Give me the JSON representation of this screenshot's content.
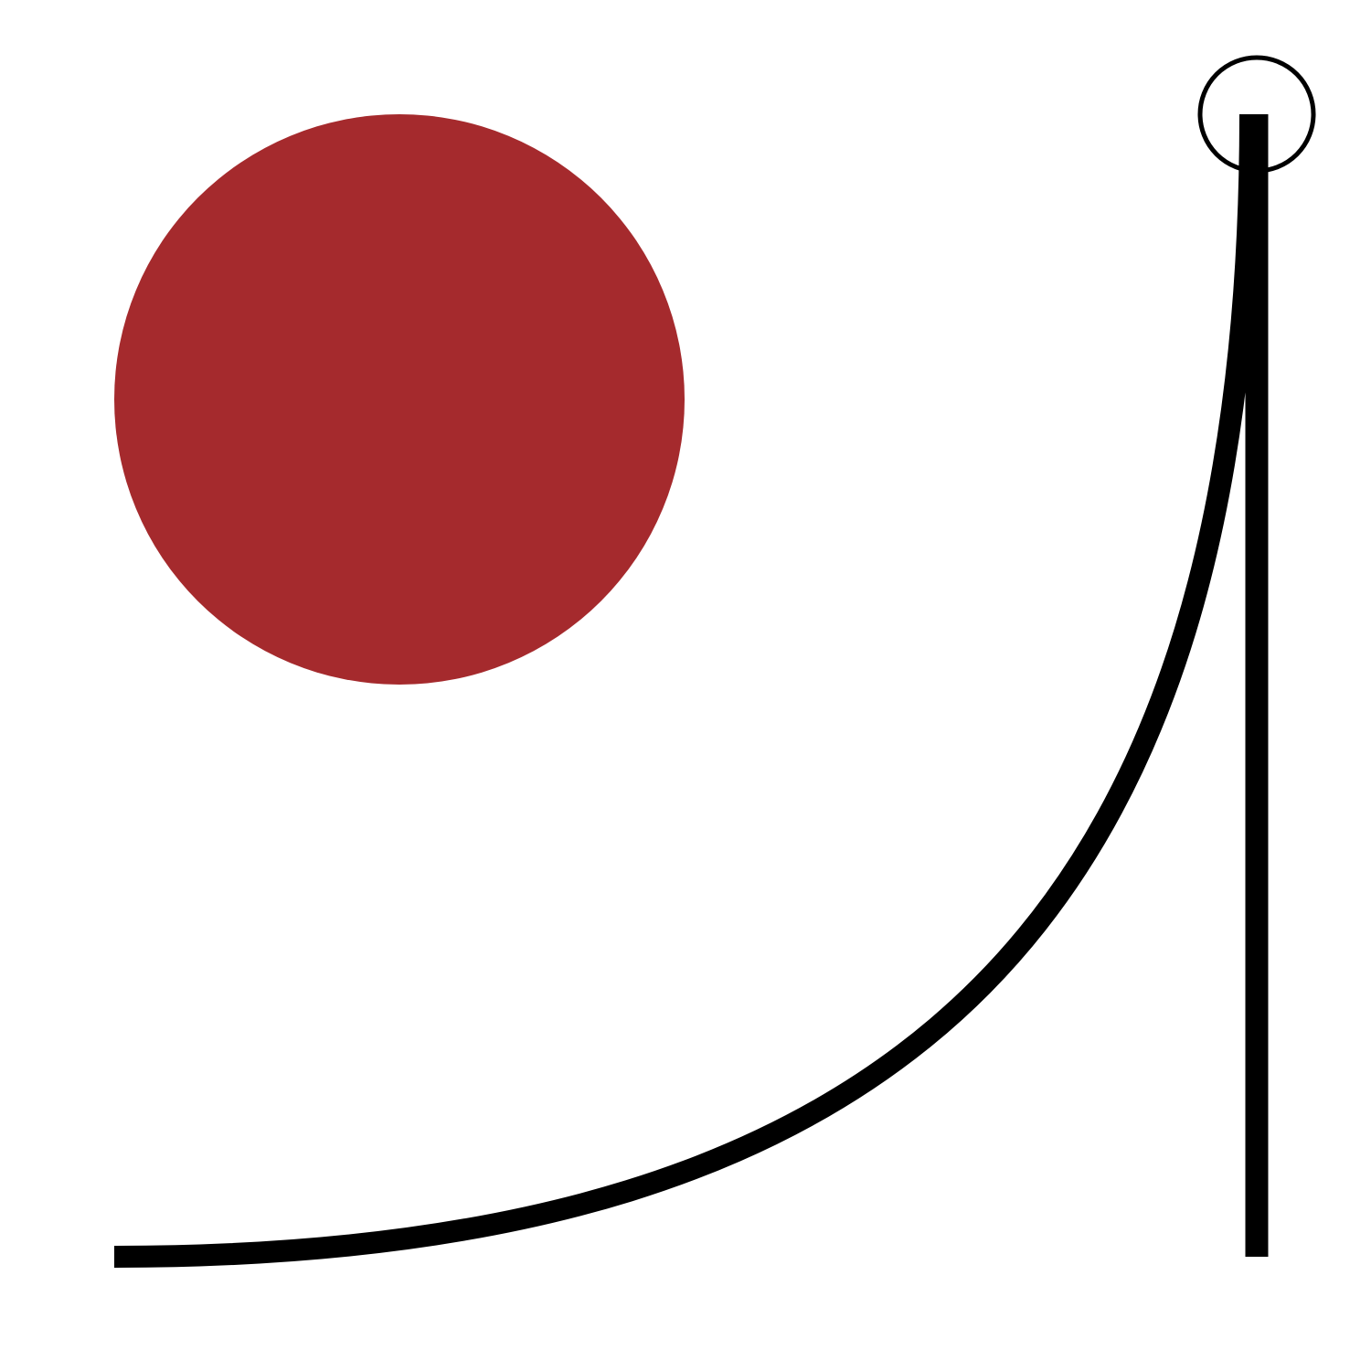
{
  "colors": {
    "background": "#ffffff",
    "filled_circle": "#a52a2d",
    "stroke": "#000000"
  },
  "elements": {
    "filled_circle": {
      "shape": "circle",
      "fill": "red"
    },
    "curve": {
      "shape": "bezier-curve"
    },
    "vertical_line": {
      "shape": "line"
    },
    "handle": {
      "shape": "circle-outline"
    }
  }
}
